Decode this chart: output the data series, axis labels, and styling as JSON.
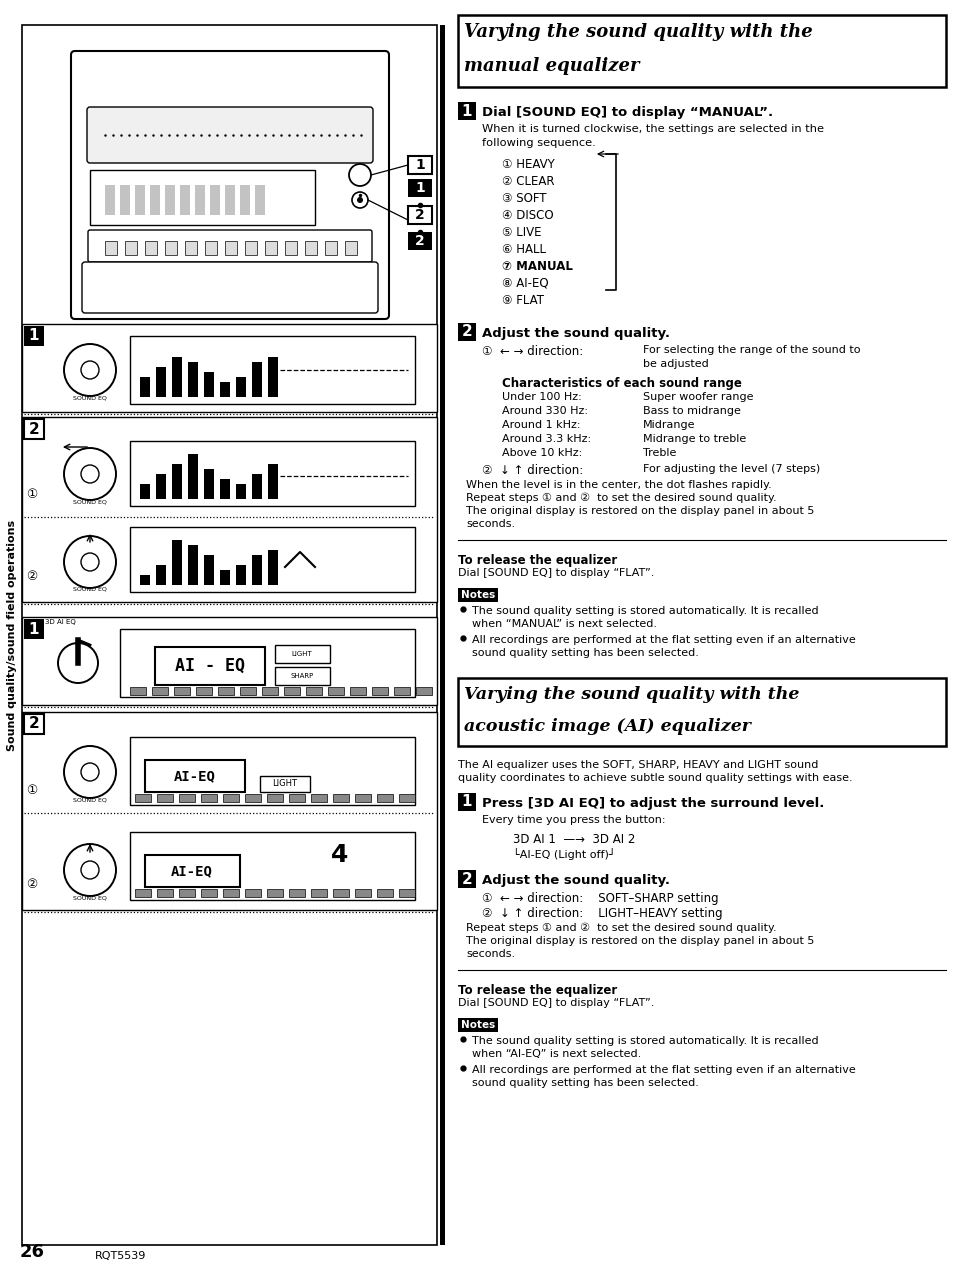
{
  "bg_color": "#ffffff",
  "page_number": "26",
  "footer_code": "RQT5539",
  "left_sidebar_text": "Sound quality/sound field operations",
  "section1_title_line1": "Varying the sound quality with the",
  "section1_title_line2": "manual equalizer",
  "step1_header": "Dial [SOUND EQ] to display “MANUAL”.",
  "step1_sub_line1": "When it is turned clockwise, the settings are selected in the",
  "step1_sub_line2": "following sequence.",
  "step1_list": [
    "① HEAVY",
    "② CLEAR",
    "③ SOFT",
    "④ DISCO",
    "⑤ LIVE",
    "⑥ HALL",
    "⑦ MANUAL",
    "⑧ AI-EQ",
    "⑨ FLAT"
  ],
  "step1_manual_bold": 6,
  "step2_header": "Adjust the sound quality.",
  "step2_chars_header": "Characteristics of each sound range",
  "step2_chars": [
    [
      "Under 100 Hz:",
      "Super woofer range"
    ],
    [
      "Around 330 Hz:",
      "Bass to midrange"
    ],
    [
      "Around 1 kHz:",
      "Midrange"
    ],
    [
      "Around 3.3 kHz:",
      "Midrange to treble"
    ],
    [
      "Above 10 kHz:",
      "Treble"
    ]
  ],
  "step2_extra": [
    "When the level is in the center, the dot flashes rapidly.",
    "Repeat steps ① and ②  to set the desired sound quality.",
    "The original display is restored on the display panel in about 5",
    "seconds."
  ],
  "release_header": "To release the equalizer",
  "release_text": "Dial [SOUND EQ] to display “FLAT”.",
  "notes_items1": [
    [
      "The sound quality setting is stored automatically. It is recalled",
      "when “MANUAL” is next selected."
    ],
    [
      "All recordings are performed at the flat setting even if an alternative",
      "sound quality setting has been selected."
    ]
  ],
  "section2_title_line1": "Varying the sound quality with the",
  "section2_title_line2": "acoustic image (AI) equalizer",
  "section2_intro_line1": "The AI equalizer uses the SOFT, SHARP, HEAVY and LIGHT sound",
  "section2_intro_line2": "quality coordinates to achieve subtle sound quality settings with ease.",
  "step3_header": "Press [3D AI EQ] to adjust the surround level.",
  "step3_sub": "Every time you press the button:",
  "step3_flow1": "3D AI 1  —→  3D AI 2",
  "step3_flow2": "└AI-EQ (Light off)┘",
  "step4_header": "Adjust the sound quality.",
  "step4_line1": "①  ← → direction:    SOFT–SHARP setting",
  "step4_line2": "②  ↓ ↑ direction:    LIGHT–HEAVY setting",
  "step4_extra": [
    "Repeat steps ① and ②  to set the desired sound quality.",
    "The original display is restored on the display panel in about 5",
    "seconds."
  ],
  "release2_header": "To release the equalizer",
  "release2_text": "Dial [SOUND EQ] to display “FLAT”.",
  "notes_items2": [
    [
      "The sound quality setting is stored automatically. It is recalled",
      "when “AI-EQ” is next selected."
    ],
    [
      "All recordings are performed at the flat setting even if an alternative",
      "sound quality setting has been selected."
    ]
  ],
  "eq_bars1": [
    20,
    30,
    40,
    35,
    25,
    15,
    20,
    35,
    40
  ],
  "eq_bars2a": [
    15,
    25,
    35,
    45,
    30,
    20,
    15,
    25,
    35
  ],
  "eq_bars2b": [
    10,
    20,
    45,
    40,
    30,
    15,
    20,
    30,
    35
  ]
}
